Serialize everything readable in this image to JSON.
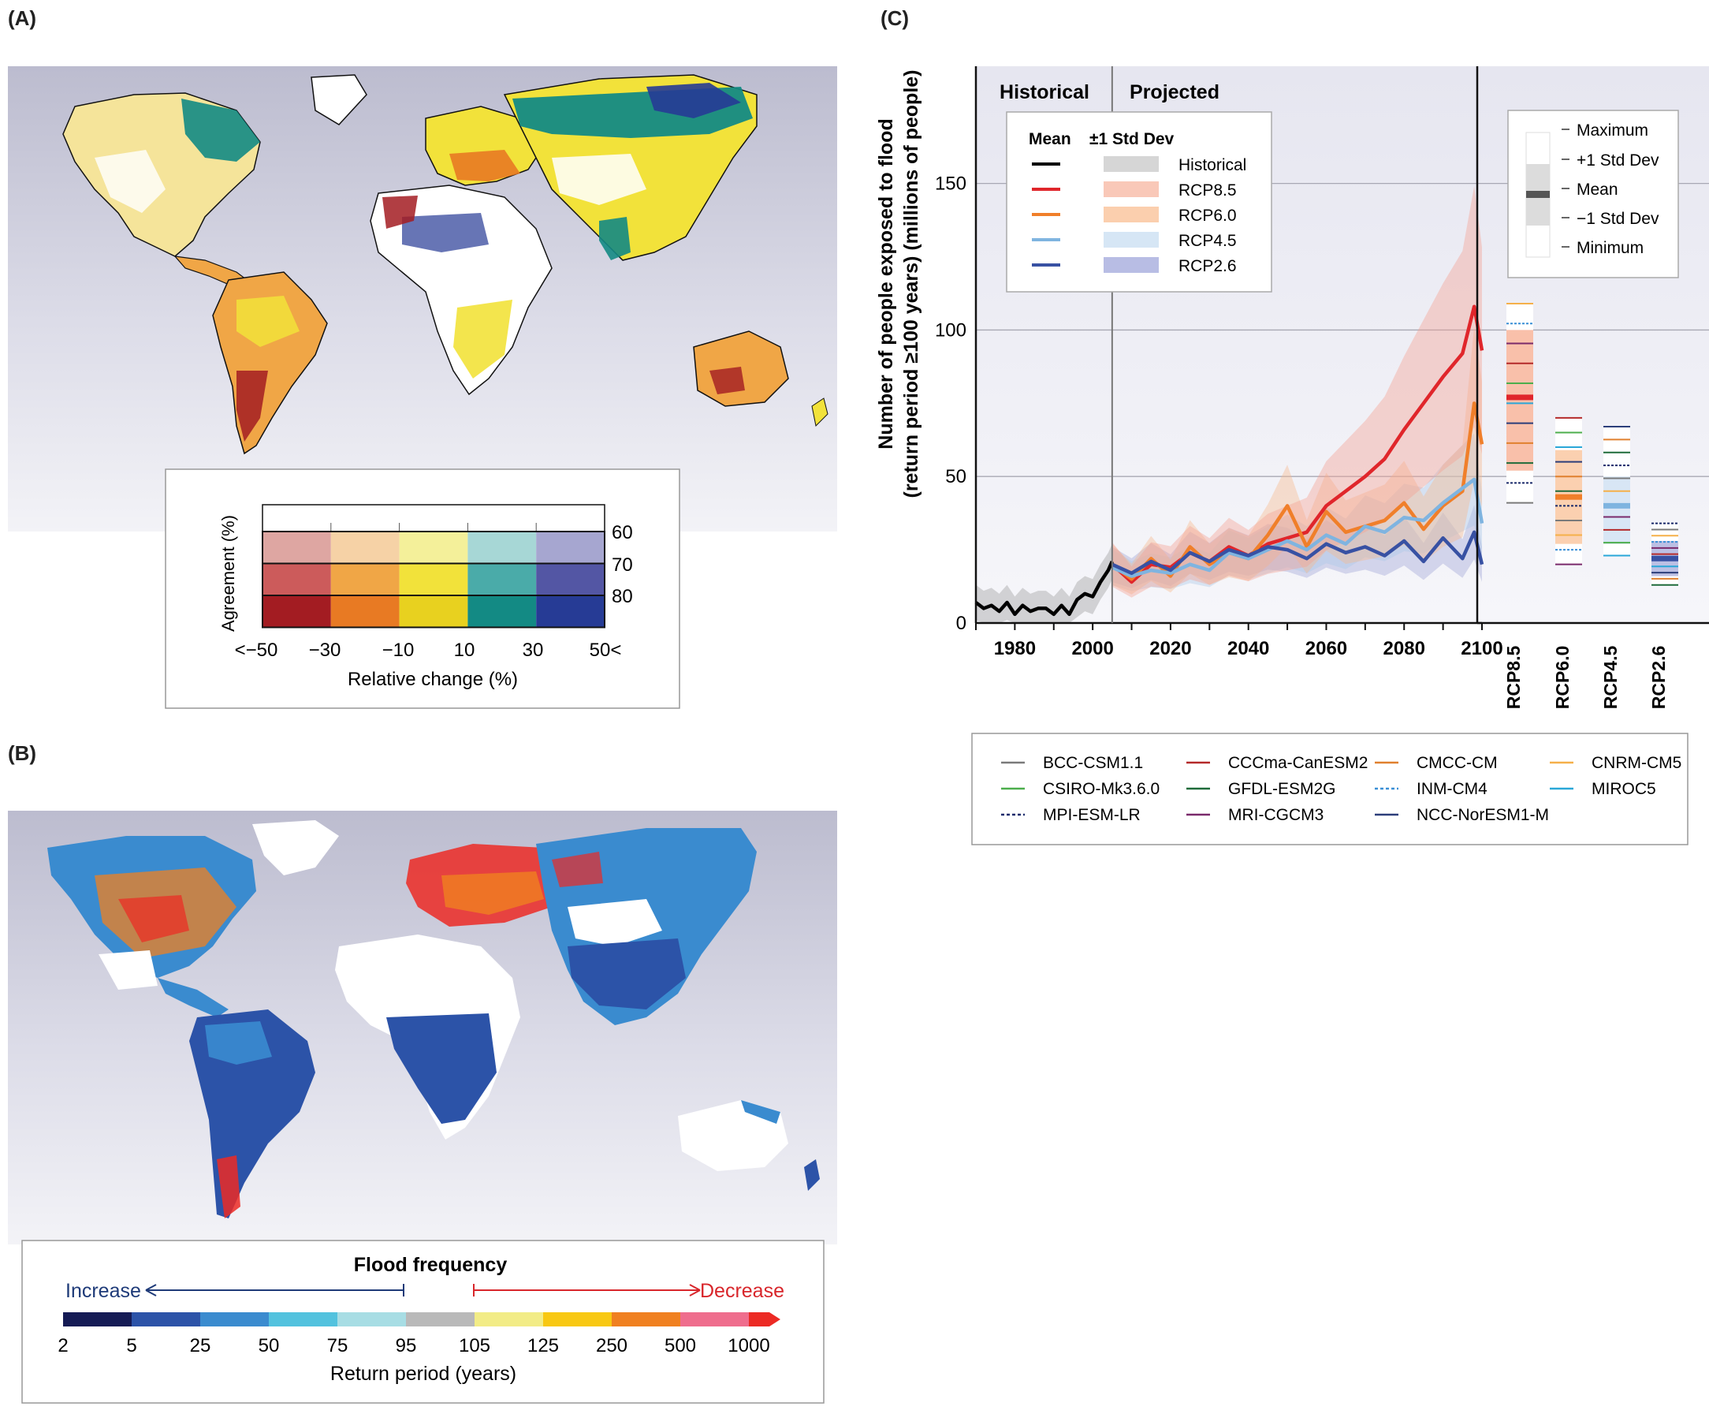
{
  "panels": {
    "a": "(A)",
    "b": "(B)",
    "c": "(C)"
  },
  "colors": {
    "red": [
      "#a31c22",
      "#cc5b5b",
      "#dea6a2"
    ],
    "orange": [
      "#e87a23",
      "#f0a646",
      "#f6d2a6"
    ],
    "yellow": [
      "#e8d11f",
      "#f2e23a",
      "#f4f09a"
    ],
    "teal": [
      "#138a84",
      "#4aaba9",
      "#a7d7d6"
    ],
    "blue": [
      "#263b95",
      "#5356a4",
      "#a6a6d0"
    ],
    "freq_scale": [
      "#151b55",
      "#2c53a8",
      "#3a8bcf",
      "#52c2de",
      "#a7dde4",
      "#b9b9b9",
      "#f2ec86",
      "#f8c812",
      "#f08020",
      "#ef6d8d",
      "#ec2a24"
    ],
    "hist": "#000000",
    "rcp85": "#e0262b",
    "rcp60": "#f07f2a",
    "rcp45": "#7fb4e0",
    "rcp26": "#3851a3"
  },
  "panel_a": {
    "legend": {
      "ylabel": "Agreement (%)",
      "xlabel": "Relative change (%)",
      "agreement_ticks": [
        "60",
        "70",
        "80"
      ],
      "change_ticks": [
        "<−50",
        "−30",
        "−10",
        "10",
        "30",
        "50<"
      ]
    }
  },
  "panel_b": {
    "legend": {
      "title": "Flood frequency",
      "increase": "Increase",
      "decrease": "Decrease",
      "ticks": [
        "2",
        "5",
        "25",
        "50",
        "75",
        "95",
        "105",
        "125",
        "250",
        "500",
        "1000"
      ],
      "xlabel": "Return period (years)"
    }
  },
  "chart_data": {
    "type": "line",
    "ylabel_line1": "Number of people exposed to flood",
    "ylabel_line2": "(return period ≥100 years) (millions of people)",
    "xlim": [
      1970,
      2100
    ],
    "ylim": [
      0,
      190
    ],
    "x_ticks": [
      "1980",
      "2000",
      "2020",
      "2040",
      "2060",
      "2080",
      "2100"
    ],
    "y_ticks": [
      "0",
      "50",
      "100",
      "150"
    ],
    "grid": true,
    "period_labels": {
      "historical": "Historical",
      "projected": "Projected"
    },
    "legend": {
      "mean_header": "Mean",
      "sd_header": "±1 Std Dev"
    },
    "series": [
      {
        "name": "Historical",
        "x": [
          1970,
          1972,
          1974,
          1976,
          1978,
          1980,
          1982,
          1984,
          1986,
          1988,
          1990,
          1992,
          1994,
          1996,
          1998,
          2000,
          2002,
          2004,
          2005
        ],
        "mean": [
          7,
          5,
          6,
          4,
          7,
          3,
          6,
          4,
          5,
          5,
          3,
          6,
          3,
          8,
          10,
          9,
          14,
          18,
          21
        ],
        "sd": 6
      },
      {
        "name": "RCP8.5",
        "x": [
          2005,
          2010,
          2015,
          2020,
          2025,
          2030,
          2035,
          2040,
          2045,
          2050,
          2055,
          2060,
          2065,
          2070,
          2075,
          2080,
          2085,
          2090,
          2095,
          2098,
          2100
        ],
        "mean": [
          20,
          14,
          20,
          19,
          24,
          21,
          26,
          23,
          27,
          29,
          31,
          40,
          45,
          50,
          56,
          66,
          75,
          84,
          92,
          108,
          93
        ],
        "sd_frac": 0.38
      },
      {
        "name": "RCP6.0",
        "x": [
          2005,
          2010,
          2015,
          2020,
          2025,
          2030,
          2035,
          2040,
          2045,
          2050,
          2055,
          2060,
          2065,
          2070,
          2075,
          2080,
          2085,
          2090,
          2095,
          2098,
          2100
        ],
        "mean": [
          20,
          15,
          22,
          16,
          26,
          20,
          24,
          22,
          30,
          40,
          26,
          38,
          31,
          33,
          35,
          41,
          32,
          40,
          45,
          75,
          61
        ],
        "sd_frac": 0.35
      },
      {
        "name": "RCP4.5",
        "x": [
          2005,
          2010,
          2015,
          2020,
          2025,
          2030,
          2035,
          2040,
          2045,
          2050,
          2055,
          2060,
          2065,
          2070,
          2075,
          2080,
          2085,
          2090,
          2095,
          2098,
          2100
        ],
        "mean": [
          19,
          16,
          18,
          17,
          20,
          18,
          24,
          22,
          25,
          28,
          25,
          30,
          27,
          33,
          31,
          36,
          35,
          41,
          46,
          49,
          34
        ],
        "sd_frac": 0.32
      },
      {
        "name": "RCP2.6",
        "x": [
          2005,
          2010,
          2015,
          2020,
          2025,
          2030,
          2035,
          2040,
          2045,
          2050,
          2055,
          2060,
          2065,
          2070,
          2075,
          2080,
          2085,
          2090,
          2095,
          2098,
          2100
        ],
        "mean": [
          20,
          17,
          21,
          18,
          24,
          21,
          25,
          23,
          26,
          25,
          22,
          27,
          24,
          26,
          23,
          28,
          21,
          29,
          22,
          31,
          20
        ],
        "sd_frac": 0.3
      }
    ],
    "summary": {
      "categories": [
        "RCP8.5",
        "RCP6.0",
        "RCP4.5",
        "RCP2.6"
      ],
      "legend": [
        "Maximum",
        "+1 Std Dev",
        "Mean",
        "−1 Std Dev",
        "Minimum"
      ],
      "stats": [
        {
          "min": 41,
          "sd_low": 52,
          "mean": 77,
          "sd_high": 100,
          "max": 109
        },
        {
          "min": 20,
          "sd_low": 27,
          "mean": 43,
          "sd_high": 59,
          "max": 70
        },
        {
          "min": 23,
          "sd_low": 27,
          "mean": 40,
          "sd_high": 50,
          "max": 67
        },
        {
          "min": 13,
          "sd_low": 16,
          "mean": 22,
          "sd_high": 28,
          "max": 34
        }
      ]
    },
    "models": [
      {
        "name": "BCC-CSM1.1",
        "color": "#7a7a7a",
        "dash": false
      },
      {
        "name": "CCCma-CanESM2",
        "color": "#b42a2a",
        "dash": false
      },
      {
        "name": "CMCC-CM",
        "color": "#e0802f",
        "dash": false
      },
      {
        "name": "CNRM-CM5",
        "color": "#f5b04a",
        "dash": false
      },
      {
        "name": "CSIRO-Mk3.6.0",
        "color": "#4cae4c",
        "dash": false
      },
      {
        "name": "GFDL-ESM2G",
        "color": "#1f6b3a",
        "dash": false
      },
      {
        "name": "INM-CM4",
        "color": "#3a8fd6",
        "dash": true
      },
      {
        "name": "MIROC5",
        "color": "#2aa7d8",
        "dash": false
      },
      {
        "name": "MPI-ESM-LR",
        "color": "#1b2a6b",
        "dash": true
      },
      {
        "name": "MRI-CGCM3",
        "color": "#7a2a6b",
        "dash": false
      },
      {
        "name": "NCC-NorESM1-M",
        "color": "#2c3e7a",
        "dash": false
      }
    ]
  }
}
